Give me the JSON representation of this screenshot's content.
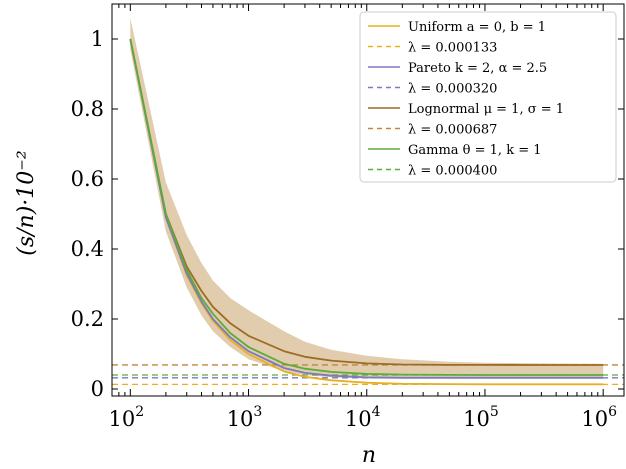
{
  "chart_data": {
    "type": "line",
    "xlabel": "n",
    "ylabel": "(s/n)·10⁻²",
    "xscale": "log",
    "xlim": [
      70,
      1500000
    ],
    "ylim": [
      -0.02,
      1.1
    ],
    "grid": false,
    "legend_position": "top-right",
    "x_ticks": [
      {
        "value": 100,
        "base": "10",
        "exp": "2"
      },
      {
        "value": 1000,
        "base": "10",
        "exp": "3"
      },
      {
        "value": 10000,
        "base": "10",
        "exp": "4"
      },
      {
        "value": 100000,
        "base": "10",
        "exp": "5"
      },
      {
        "value": 1000000,
        "base": "10",
        "exp": "6"
      }
    ],
    "y_ticks": [
      {
        "value": 0,
        "label": "0"
      },
      {
        "value": 0.2,
        "label": "0.2"
      },
      {
        "value": 0.4,
        "label": "0.4"
      },
      {
        "value": 0.6,
        "label": "0.6"
      },
      {
        "value": 0.8,
        "label": "0.8"
      },
      {
        "value": 1,
        "label": "1"
      }
    ],
    "x": [
      100,
      200,
      300,
      400,
      500,
      700,
      1000,
      2000,
      3000,
      5000,
      10000,
      20000,
      50000,
      100000,
      300000,
      1000000
    ],
    "series": [
      {
        "name": "Uniform a = 0, b = 1",
        "color": "#e8b021",
        "values": [
          1.0,
          0.49,
          0.325,
          0.245,
          0.195,
          0.14,
          0.1,
          0.05,
          0.035,
          0.025,
          0.018,
          0.015,
          0.014,
          0.0135,
          0.0133,
          0.0133
        ]
      },
      {
        "name": "Pareto k = 2, α = 2.5",
        "color": "#7b79c0",
        "values": [
          1.0,
          0.49,
          0.33,
          0.25,
          0.2,
          0.148,
          0.108,
          0.06,
          0.046,
          0.038,
          0.033,
          0.032,
          0.032,
          0.032,
          0.032,
          0.032
        ]
      },
      {
        "name": "Lognormal μ = 1, σ = 1",
        "color": "#9e6b25",
        "values": [
          1.0,
          0.5,
          0.35,
          0.28,
          0.235,
          0.188,
          0.152,
          0.108,
          0.092,
          0.081,
          0.073,
          0.07,
          0.069,
          0.0688,
          0.0687,
          0.0687
        ],
        "band_lower": [
          0.97,
          0.45,
          0.29,
          0.21,
          0.165,
          0.12,
          0.085,
          0.05,
          0.04,
          0.033,
          0.03,
          0.03,
          0.03,
          0.03,
          0.03,
          0.03
        ],
        "band_upper": [
          1.06,
          0.59,
          0.44,
          0.36,
          0.31,
          0.26,
          0.225,
          0.165,
          0.135,
          0.112,
          0.095,
          0.085,
          0.078,
          0.075,
          0.073,
          0.072
        ],
        "band_color": "#c9a46b"
      },
      {
        "name": "Gamma θ = 1, k = 1",
        "color": "#5dab3c",
        "values": [
          1.0,
          0.5,
          0.34,
          0.26,
          0.215,
          0.16,
          0.12,
          0.072,
          0.058,
          0.049,
          0.043,
          0.041,
          0.0402,
          0.04,
          0.04,
          0.04
        ]
      }
    ],
    "reference_lines": [
      {
        "name": "λ = 0.000133",
        "value": 0.0133,
        "color": "#e8b021"
      },
      {
        "name": "λ = 0.000320",
        "value": 0.032,
        "color": "#7b79c0"
      },
      {
        "name": "λ = 0.000687",
        "value": 0.0687,
        "color": "#c0873a"
      },
      {
        "name": "λ = 0.000400",
        "value": 0.04,
        "color": "#5dab3c"
      }
    ],
    "legend": [
      {
        "label": "Uniform a = 0, b = 1",
        "style": "solid",
        "color": "#e8b021"
      },
      {
        "label": "λ = 0.000133",
        "style": "dashed",
        "color": "#e8b021"
      },
      {
        "label": "Pareto k = 2, α = 2.5",
        "style": "solid",
        "color": "#7b79c0"
      },
      {
        "label": "λ = 0.000320",
        "style": "dashed",
        "color": "#7b79c0"
      },
      {
        "label": "Lognormal μ = 1, σ = 1",
        "style": "solid",
        "color": "#9e6b25"
      },
      {
        "label": "λ = 0.000687",
        "style": "dashed",
        "color": "#c0873a"
      },
      {
        "label": "Gamma θ = 1, k = 1",
        "style": "solid",
        "color": "#5dab3c"
      },
      {
        "label": "λ = 0.000400",
        "style": "dashed",
        "color": "#5dab3c"
      }
    ]
  }
}
